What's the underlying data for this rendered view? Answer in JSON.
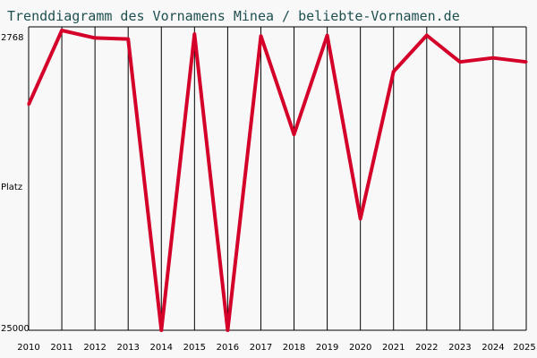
{
  "chart_data": {
    "type": "line",
    "title": "Trenddiagramm des Vornamens Minea / beliebte-Vornamen.de",
    "xlabel": "",
    "ylabel": "Platz",
    "y_tick_labels": [
      "2768",
      "25000"
    ],
    "y_inverted": true,
    "categories": [
      "2010",
      "2011",
      "2012",
      "2013",
      "2014",
      "2015",
      "2016",
      "2017",
      "2018",
      "2019",
      "2020",
      "2021",
      "2022",
      "2023",
      "2024",
      "2025"
    ],
    "series": [
      {
        "name": "",
        "color": "#d4002a",
        "values": [
          8260,
          2768,
          3320,
          3400,
          25000,
          3040,
          25000,
          3180,
          10480,
          3130,
          16730,
          5820,
          3130,
          5100,
          4800,
          5100
        ]
      }
    ],
    "ylim": [
      2500,
      25000
    ],
    "grid": "vertical"
  }
}
